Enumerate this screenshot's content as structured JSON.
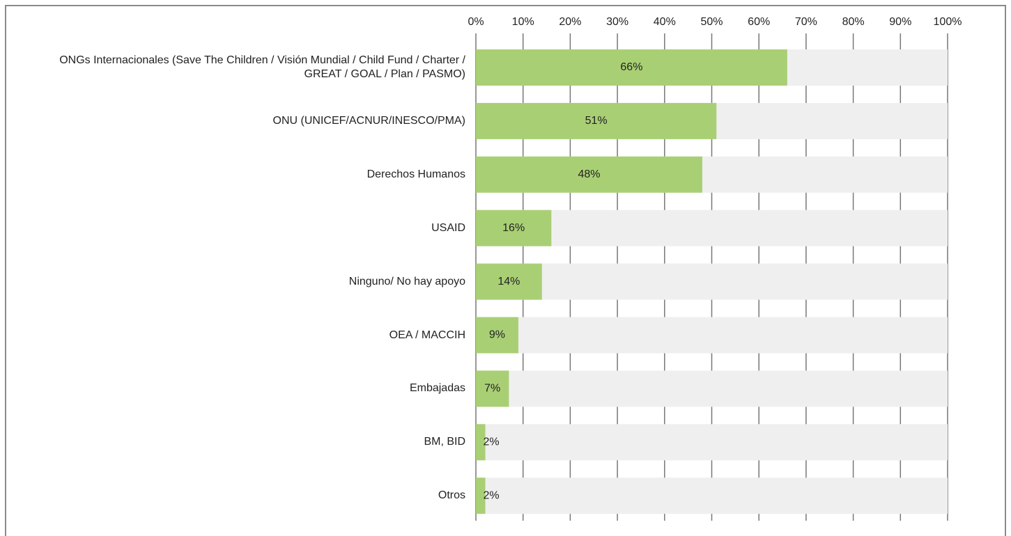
{
  "chart_data": {
    "type": "bar",
    "orientation": "horizontal",
    "categories": [
      "ONGs Internacionales (Save The Children / Visión Mundial / Child Fund / Charter / GREAT / GOAL / Plan / PASMO)",
      "ONU (UNICEF/ACNUR/INESCO/PMA)",
      "Derechos Humanos",
      "USAID",
      "Ninguno/ No hay apoyo",
      "OEA / MACCIH",
      "Embajadas",
      "BM, BID",
      "Otros"
    ],
    "values": [
      66,
      51,
      48,
      16,
      14,
      9,
      7,
      2,
      2
    ],
    "value_labels": [
      "66%",
      "51%",
      "48%",
      "16%",
      "14%",
      "9%",
      "7%",
      "2%",
      "2%"
    ],
    "color": "#a9cf74",
    "background_color": "#efefef",
    "xlim": [
      0,
      100
    ],
    "xticks": [
      {
        "value": 0,
        "label": "0%"
      },
      {
        "value": 10,
        "label": "10%"
      },
      {
        "value": 20,
        "label": "20%"
      },
      {
        "value": 30,
        "label": "30%"
      },
      {
        "value": 40,
        "label": "40%"
      },
      {
        "value": 50,
        "label": "50%"
      },
      {
        "value": 60,
        "label": "60%"
      },
      {
        "value": 70,
        "label": "70%"
      },
      {
        "value": 80,
        "label": "80%"
      },
      {
        "value": 90,
        "label": "90%"
      },
      {
        "value": 100,
        "label": "100%"
      }
    ],
    "grid": true
  }
}
